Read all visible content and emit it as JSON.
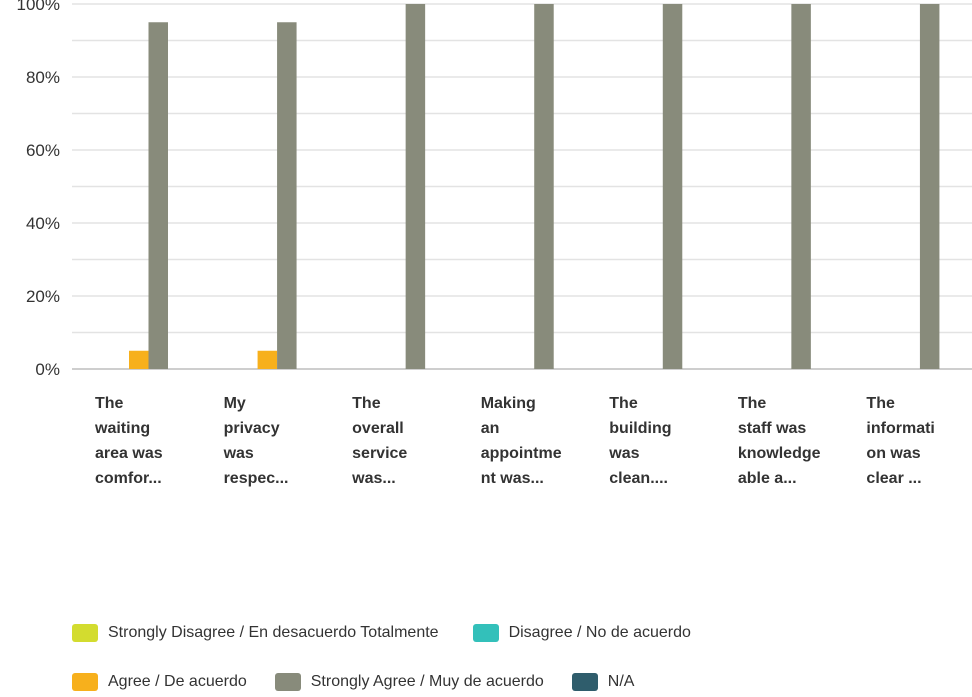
{
  "chart_data": {
    "type": "bar",
    "ylim": [
      0,
      100
    ],
    "yticks": [
      "0%",
      "20%",
      "40%",
      "60%",
      "80%",
      "100%"
    ],
    "categories": [
      [
        "The",
        "waiting",
        "area was",
        "comfor..."
      ],
      [
        "My",
        "privacy",
        "was",
        "respec..."
      ],
      [
        "The",
        "overall",
        "service",
        "was..."
      ],
      [
        "Making",
        "an",
        "appointme",
        "nt was..."
      ],
      [
        "The",
        "building",
        "was",
        "clean...."
      ],
      [
        "The",
        "staff was",
        "knowledge",
        "able a..."
      ],
      [
        "The",
        "informati",
        "on was",
        "clear ..."
      ]
    ],
    "series": [
      {
        "name": "Strongly Disagree / En desacuerdo Totalmente",
        "color": "#d3dc2f",
        "values": [
          0,
          0,
          0,
          0,
          0,
          0,
          0
        ]
      },
      {
        "name": "Disagree / No de acuerdo",
        "color": "#33c0ba",
        "values": [
          0,
          0,
          0,
          0,
          0,
          0,
          0
        ]
      },
      {
        "name": "Agree / De acuerdo",
        "color": "#f7b01c",
        "values": [
          5,
          5,
          0,
          0,
          0,
          0,
          0
        ]
      },
      {
        "name": "Strongly Agree / Muy de acuerdo",
        "color": "#888b7b",
        "values": [
          95,
          95,
          100,
          100,
          100,
          100,
          100
        ]
      },
      {
        "name": "N/A",
        "color": "#2f5d6c",
        "values": [
          0,
          0,
          0,
          0,
          0,
          0,
          0
        ]
      }
    ],
    "grid": true,
    "legend_position": "bottom"
  }
}
